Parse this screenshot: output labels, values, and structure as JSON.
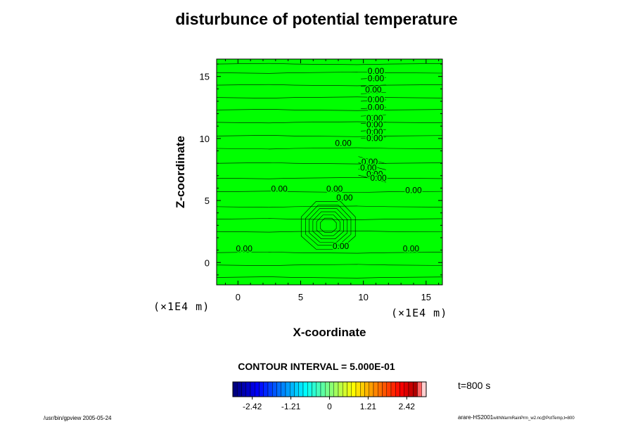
{
  "page": {
    "title": "disturbunce of potential temperature",
    "contour_interval_text": "CONTOUR INTERVAL = 5.000E-01",
    "time_label": "t=800 s",
    "footer_left": "/usr/bin/gpview 2005-05-24",
    "footer_right_main": "arare-HS2001",
    "footer_right_small": "withWarmRainPrm_w2.nc@PotTemp,t=800",
    "x_unit": "(×1E4 m)",
    "z_unit": "(×1E4 m)"
  },
  "chart_data": {
    "type": "heatmap",
    "title": "disturbunce of potential temperature",
    "xlabel": "X-coordinate",
    "ylabel": "Z-coordinate",
    "xlim": [
      -1.7,
      16.3
    ],
    "ylim": [
      -1.8,
      16.4
    ],
    "xticks": [
      0,
      5,
      10,
      15
    ],
    "yticks": [
      0,
      5,
      10,
      15
    ],
    "fill_color": "#00ff00",
    "contour_labels": [
      {
        "text": "0.00",
        "x": 11.0,
        "y": 15.2
      },
      {
        "text": "0.00",
        "x": 11.0,
        "y": 14.6
      },
      {
        "text": "0.00",
        "x": 10.8,
        "y": 13.7
      },
      {
        "text": "0.00",
        "x": 11.0,
        "y": 12.9
      },
      {
        "text": "0.00",
        "x": 11.0,
        "y": 12.3
      },
      {
        "text": "0.00",
        "x": 10.9,
        "y": 11.4
      },
      {
        "text": "0.00",
        "x": 10.9,
        "y": 10.9
      },
      {
        "text": "0.00",
        "x": 10.9,
        "y": 10.3
      },
      {
        "text": "0.00",
        "x": 10.9,
        "y": 9.8
      },
      {
        "text": "0.00",
        "x": 8.4,
        "y": 9.4
      },
      {
        "text": "0.00",
        "x": 10.5,
        "y": 7.9
      },
      {
        "text": "0.00",
        "x": 10.4,
        "y": 7.4
      },
      {
        "text": "0.00",
        "x": 10.9,
        "y": 6.9
      },
      {
        "text": "0.00",
        "x": 11.2,
        "y": 6.6
      },
      {
        "text": "0.00",
        "x": 3.3,
        "y": 5.7
      },
      {
        "text": "0.00",
        "x": 7.7,
        "y": 5.7
      },
      {
        "text": "0.00",
        "x": 8.5,
        "y": 5.0
      },
      {
        "text": "0.00",
        "x": 14.0,
        "y": 5.6
      },
      {
        "text": "0.00",
        "x": 0.5,
        "y": 0.9
      },
      {
        "text": "0.00",
        "x": 8.2,
        "y": 1.1
      },
      {
        "text": "0.00",
        "x": 13.8,
        "y": 0.9
      }
    ],
    "colorbar": {
      "ticks": [
        "-2.42",
        "-1.21",
        "0",
        "1.21",
        "2.42"
      ],
      "range": [
        -3.03,
        3.03
      ]
    },
    "contour_interval": "5.000E-01",
    "time": "t=800 s"
  }
}
